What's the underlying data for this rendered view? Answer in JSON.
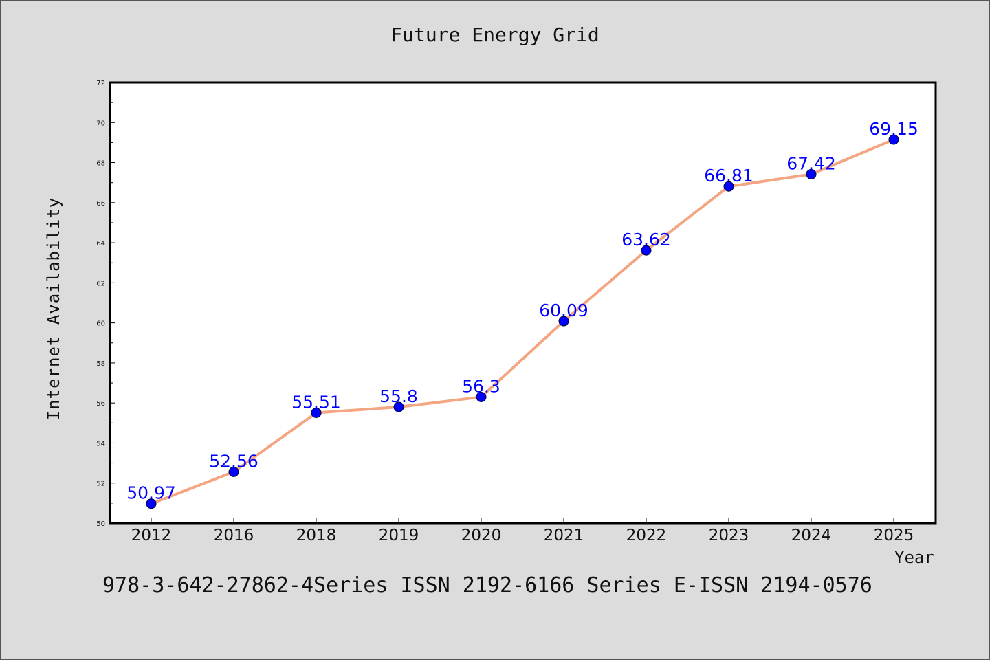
{
  "chart_data": {
    "type": "line",
    "title": "Future Energy Grid",
    "xlabel": "Year",
    "ylabel": "Internet Availability",
    "categories": [
      "2012",
      "2016",
      "2018",
      "2019",
      "2020",
      "2021",
      "2022",
      "2023",
      "2024",
      "2025"
    ],
    "series": [
      {
        "values": [
          50.97,
          52.56,
          55.51,
          55.8,
          56.3,
          60.09,
          63.62,
          66.81,
          67.42,
          69.15
        ],
        "line_color": "#f4a582",
        "marker_color": "#0000ff",
        "label_color": "#0000ff"
      }
    ],
    "ylim": [
      50,
      72
    ],
    "yticks": [
      50,
      52,
      54,
      56,
      58,
      60,
      62,
      64,
      66,
      68,
      70,
      72
    ],
    "grid": false,
    "data_labels": [
      "50.97",
      "52.56",
      "55.51",
      "55.8",
      "56.3",
      "60.09",
      "63.62",
      "66.81",
      "67.42",
      "69.15"
    ]
  },
  "footer_note": "978-3-642-27862-4Series ISSN 2192-6166 Series E-ISSN 2194-0576",
  "colors": {
    "background": "#dcdcdc",
    "plot_background": "#ffffff",
    "axis": "#000000"
  }
}
